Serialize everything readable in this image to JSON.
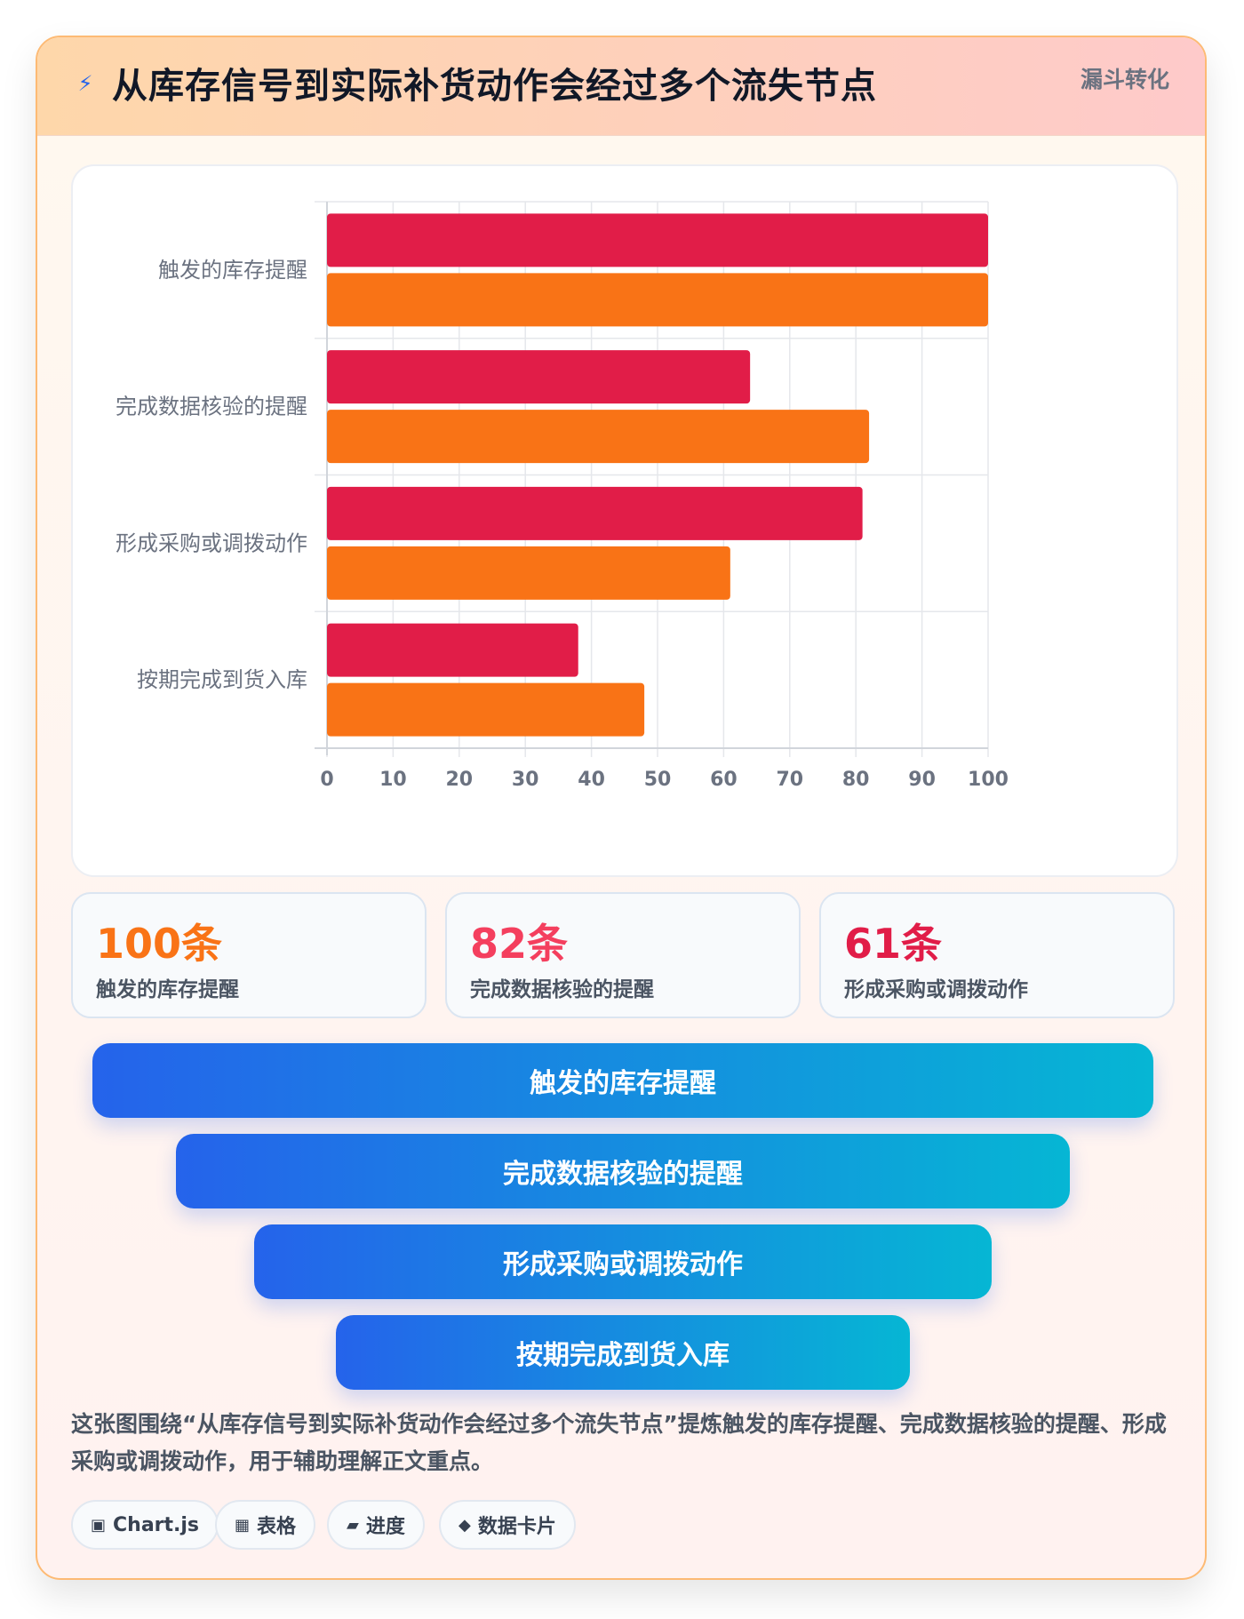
{
  "header": {
    "icon": "lightning-icon",
    "title": "从库存信号到实际补货动作会经过多个流失节点",
    "badge": "漏斗转化"
  },
  "chart_data": {
    "type": "bar",
    "orientation": "horizontal",
    "categories": [
      "触发的库存提醒",
      "完成数据核验的提醒",
      "形成采购或调拨动作",
      "按期完成到货入库"
    ],
    "series": [
      {
        "values": [
          100,
          64,
          81,
          38
        ],
        "color": "#e11d48"
      },
      {
        "values": [
          100,
          82,
          61,
          48
        ],
        "color": "#f97316"
      }
    ],
    "xlim": [
      0,
      100
    ],
    "xticks": [
      "0",
      "10",
      "20",
      "30",
      "40",
      "50",
      "60",
      "70",
      "80",
      "90",
      "100"
    ],
    "grid": true,
    "legend": "none"
  },
  "stats": [
    {
      "value": "100条",
      "label": "触发的库存提醒",
      "color": "#f97316"
    },
    {
      "value": "82条",
      "label": "完成数据核验的提醒",
      "color": "#f43f5e"
    },
    {
      "value": "61条",
      "label": "形成采购或调拨动作",
      "color": "#e11d48"
    }
  ],
  "funnel": [
    {
      "label": "触发的库存提醒"
    },
    {
      "label": "完成数据核验的提醒"
    },
    {
      "label": "形成采购或调拨动作"
    },
    {
      "label": "按期完成到货入库"
    }
  ],
  "caption": "这张图围绕“从库存信号到实际补货动作会经过多个流失节点”提炼触发的库存提醒、完成数据核验的提醒、形成采购或调拨动作，用于辅助理解正文重点。",
  "tags": [
    {
      "icon": "▣",
      "label": "Chart.js"
    },
    {
      "icon": "▦",
      "label": "表格"
    },
    {
      "icon": "▰",
      "label": "进度"
    },
    {
      "icon": "◆",
      "label": "数据卡片"
    }
  ]
}
